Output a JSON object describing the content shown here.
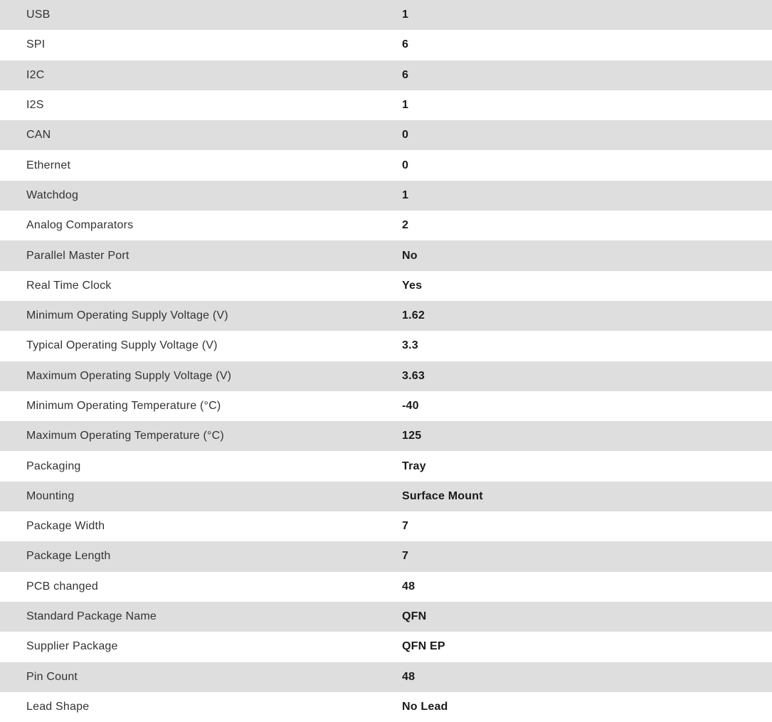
{
  "colors": {
    "row_alt_background": "#dedede",
    "row_background": "#ffffff",
    "label_text": "#333333",
    "value_text": "#1a1a1a"
  },
  "table": {
    "rows": [
      {
        "label": "USB",
        "value": "1"
      },
      {
        "label": "SPI",
        "value": "6"
      },
      {
        "label": "I2C",
        "value": "6"
      },
      {
        "label": "I2S",
        "value": "1"
      },
      {
        "label": "CAN",
        "value": "0"
      },
      {
        "label": "Ethernet",
        "value": "0"
      },
      {
        "label": "Watchdog",
        "value": "1"
      },
      {
        "label": "Analog Comparators",
        "value": "2"
      },
      {
        "label": "Parallel Master Port",
        "value": "No"
      },
      {
        "label": "Real Time Clock",
        "value": "Yes"
      },
      {
        "label": "Minimum Operating Supply Voltage (V)",
        "value": "1.62"
      },
      {
        "label": "Typical Operating Supply Voltage (V)",
        "value": "3.3"
      },
      {
        "label": "Maximum Operating Supply Voltage (V)",
        "value": "3.63"
      },
      {
        "label": "Minimum Operating Temperature (°C)",
        "value": "-40"
      },
      {
        "label": "Maximum Operating Temperature (°C)",
        "value": "125"
      },
      {
        "label": "Packaging",
        "value": "Tray"
      },
      {
        "label": "Mounting",
        "value": "Surface Mount"
      },
      {
        "label": "Package Width",
        "value": "7"
      },
      {
        "label": "Package Length",
        "value": "7"
      },
      {
        "label": "PCB changed",
        "value": "48"
      },
      {
        "label": "Standard Package Name",
        "value": "QFN"
      },
      {
        "label": "Supplier Package",
        "value": "QFN EP"
      },
      {
        "label": "Pin Count",
        "value": "48"
      },
      {
        "label": "Lead Shape",
        "value": "No Lead"
      }
    ]
  }
}
